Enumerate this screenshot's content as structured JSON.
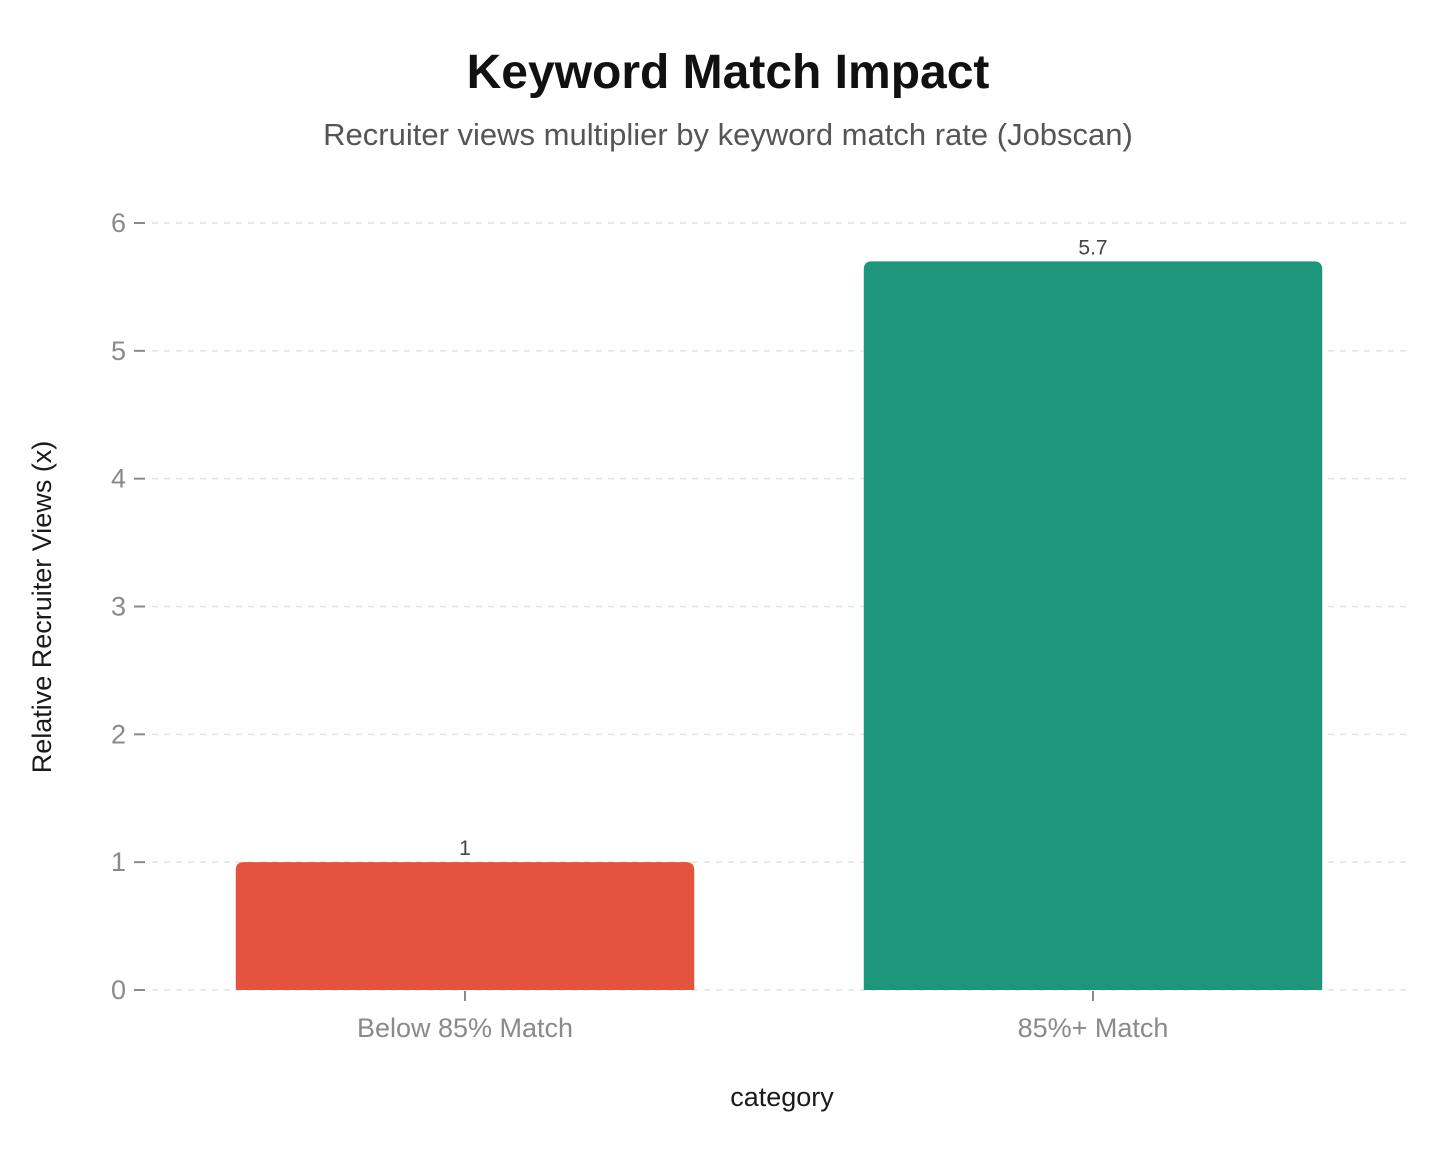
{
  "chart_data": {
    "type": "bar",
    "title": "Keyword Match Impact",
    "subtitle": "Recruiter views multiplier by keyword match rate (Jobscan)",
    "xlabel": "category",
    "ylabel": "Relative Recruiter Views (x)",
    "categories": [
      "Below 85% Match",
      "85%+ Match"
    ],
    "values": [
      1,
      5.7
    ],
    "data_labels": [
      "1",
      "5.7"
    ],
    "colors": [
      "#e4533d",
      "#1e967c"
    ],
    "ylim": [
      0,
      6
    ],
    "yticks": [
      0,
      1,
      2,
      3,
      4,
      5,
      6
    ],
    "ytick_labels": [
      "0",
      "1",
      "2",
      "3",
      "4",
      "5",
      "6"
    ],
    "grid": "horizontal dashed",
    "legend": "none"
  }
}
